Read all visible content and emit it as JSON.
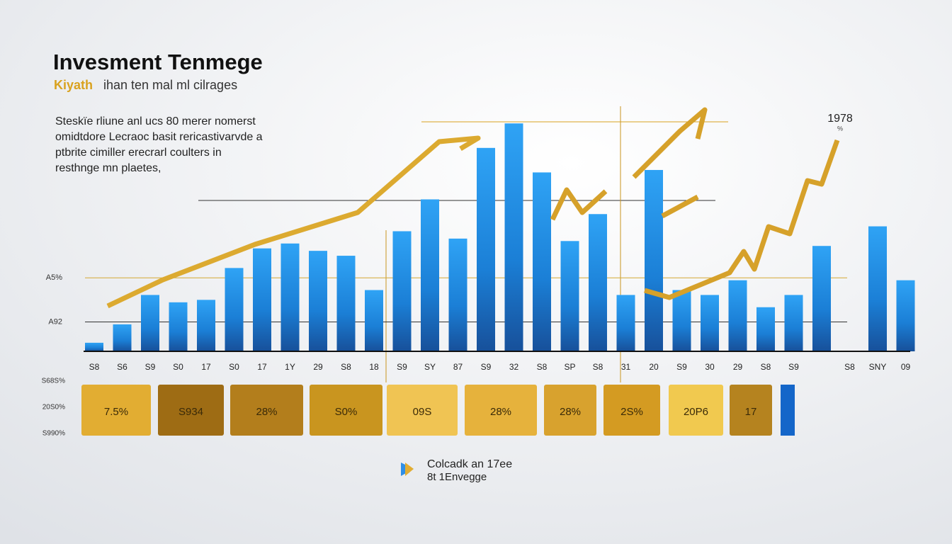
{
  "chart_data": {
    "type": "bar",
    "title": "Invesment Tenmege",
    "subtitle_lead": "Kiyath",
    "subtitle": "ihan ten mal ml cilrages",
    "description": [
      "Steskïe rliune anl ucs 80 merer nomerst",
      "omidtdore Lecraoc basit rericastivarvde a",
      "ptbrite cimiller erecrarl coulters in",
      "resthnge mn plaetes,"
    ],
    "corner_label": "1978",
    "corner_sublabel": "%",
    "categories": [
      "S8",
      "S6",
      "S9",
      "S0",
      "17",
      "S0",
      "17",
      "1Y",
      "29",
      "S8",
      "18",
      "S9",
      "SY",
      "87",
      "S9",
      "32",
      "S8",
      "SP",
      "S8",
      "31",
      "20",
      "S9",
      "30",
      "29",
      "S8",
      "S9",
      null,
      "S8",
      "SNY",
      "09"
    ],
    "values": [
      3.5,
      11,
      23,
      20,
      21,
      34,
      42,
      44,
      41,
      39,
      25,
      49,
      62,
      46,
      83,
      93,
      73,
      45,
      56,
      23,
      74,
      25,
      23,
      29,
      18,
      23,
      43,
      null,
      51,
      29
    ],
    "color": "#1f8ae6",
    "ylim": [
      0,
      100
    ],
    "yticks": [
      {
        "value": 12,
        "label": "A92"
      },
      {
        "value": 30,
        "label": "A5%"
      }
    ],
    "grid": true,
    "tile_labels": [
      "S68S%",
      "20S0%",
      "S990%"
    ],
    "tiles": [
      "7.5%",
      "S934",
      "28%",
      "S0%",
      "09S",
      "28%",
      "28%",
      "2S%",
      "20P6",
      "17"
    ],
    "tile_colors": [
      "#e2ad32",
      "#9e6c14",
      "#b37e1c",
      "#c9951f",
      "#f0c453",
      "#e6b23c",
      "#d8a22e",
      "#d49b22",
      "#f1c94f",
      "#b5831f"
    ],
    "legend": [
      "Colcadk an 17ee",
      "8t 1Envegge"
    ]
  }
}
